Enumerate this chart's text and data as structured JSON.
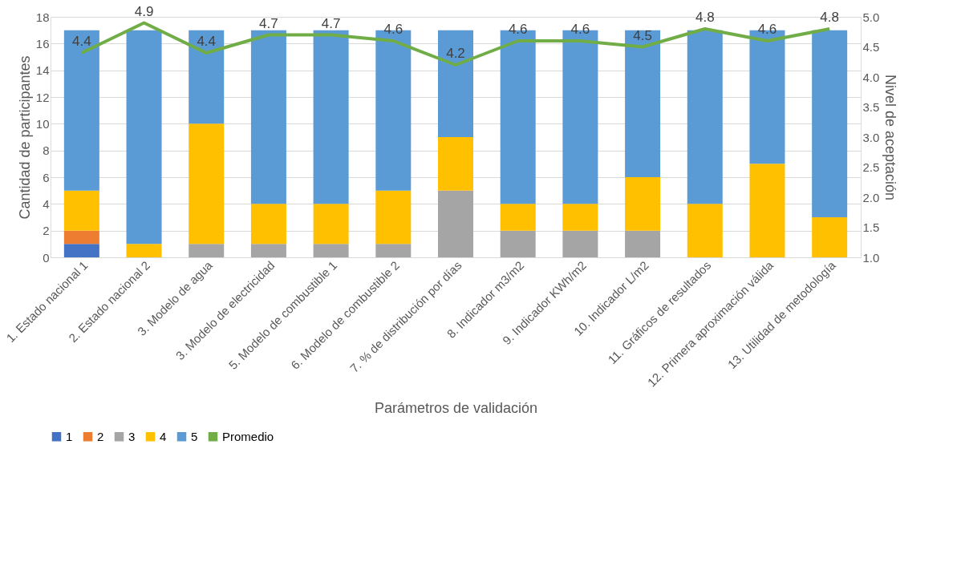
{
  "chart_data": {
    "type": "bar",
    "stacked": true,
    "xlabel": "Parámetros de validación",
    "ylabel": "Cantidad de participantes",
    "y2label": "Nivel de aceptación",
    "categories": [
      "1. Estado nacional 1",
      "2. Estado nacional 2",
      "3. Modelo de agua",
      "3. Modelo de electricidad",
      "5. Modelo de combustible 1",
      "6. Modelo de combustible 2",
      "7. % de distribución por días",
      "8. Indicador m3/m2",
      "9. Indicador KWh/m2",
      "10. Indicador L/m2",
      "11. Gráficos de resultados",
      "12. Primera aproximación válida",
      "13. Utilidad de metodología"
    ],
    "series": [
      {
        "name": "1",
        "color": "#4472c4",
        "values": [
          1,
          0,
          0,
          0,
          0,
          0,
          0,
          0,
          0,
          0,
          0,
          0,
          0
        ]
      },
      {
        "name": "2",
        "color": "#ed7d31",
        "values": [
          1,
          0,
          0,
          0,
          0,
          0,
          0,
          0,
          0,
          0,
          0,
          0,
          0
        ]
      },
      {
        "name": "3",
        "color": "#a5a5a5",
        "values": [
          0,
          0,
          1,
          1,
          1,
          1,
          5,
          2,
          2,
          2,
          0,
          0,
          0
        ]
      },
      {
        "name": "4",
        "color": "#ffc000",
        "values": [
          3,
          1,
          9,
          3,
          3,
          4,
          4,
          2,
          2,
          4,
          4,
          7,
          3
        ]
      },
      {
        "name": "5",
        "color": "#5b9bd5",
        "values": [
          12,
          16,
          7,
          13,
          13,
          12,
          8,
          13,
          13,
          11,
          13,
          10,
          14
        ]
      },
      {
        "name": "Promedio",
        "type": "line",
        "axis": "y2",
        "data_labels": true,
        "color": "#70ad47",
        "values": [
          4.4,
          4.9,
          4.4,
          4.7,
          4.7,
          4.6,
          4.2,
          4.6,
          4.6,
          4.5,
          4.8,
          4.6,
          4.8
        ]
      }
    ],
    "ylim": [
      0,
      18
    ],
    "yticks": [
      0,
      2,
      4,
      6,
      8,
      10,
      12,
      14,
      16,
      18
    ],
    "y2lim": [
      1,
      5
    ],
    "y2ticks": [
      {
        "value": 1,
        "label": "1.0"
      },
      {
        "value": 1.5,
        "label": "1.5"
      },
      {
        "value": 2,
        "label": "2.0"
      },
      {
        "value": 2.5,
        "label": "2.5"
      },
      {
        "value": 3,
        "label": "3.0"
      },
      {
        "value": 3.5,
        "label": "3.5"
      },
      {
        "value": 4,
        "label": "4.0"
      },
      {
        "value": 4.5,
        "label": "4.5"
      },
      {
        "value": 5,
        "label": "5.0"
      }
    ],
    "grid": "y",
    "legend": "bottom"
  }
}
